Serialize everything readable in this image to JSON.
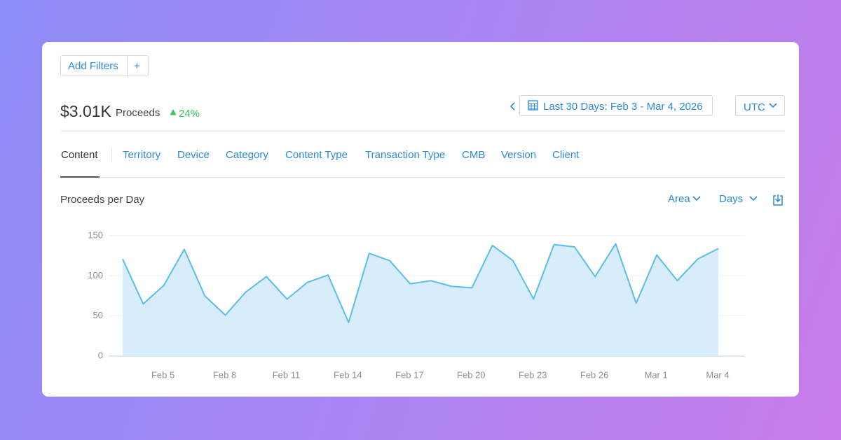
{
  "toolbar": {
    "add_filters": "Add Filters",
    "add": "+"
  },
  "summary": {
    "amount": "$3.01K",
    "label": "Proceeds",
    "change": "24%"
  },
  "date_range": "Last 30 Days: Feb 3 - Mar 4, 2026",
  "timezone": "UTC",
  "tabs": [
    "Content",
    "Territory",
    "Device",
    "Category",
    "Content Type",
    "Transaction Type",
    "CMB",
    "Version",
    "Client"
  ],
  "chart_controls": {
    "chart_type": "Area",
    "interval": "Days"
  },
  "chart_data": {
    "type": "area",
    "title": "Proceeds per Day",
    "categories": [
      null,
      null,
      "Feb 5",
      null,
      null,
      "Feb 8",
      null,
      null,
      "Feb 11",
      null,
      null,
      "Feb 14",
      null,
      null,
      "Feb 17",
      null,
      null,
      "Feb 20",
      null,
      null,
      "Feb 23",
      null,
      null,
      "Feb 26",
      null,
      null,
      "Mar 1",
      null,
      null,
      "Mar 4"
    ],
    "values": [
      121,
      65,
      88,
      133,
      75,
      51,
      80,
      99,
      71,
      92,
      101,
      42,
      128,
      119,
      90,
      94,
      87,
      85,
      138,
      119,
      71,
      139,
      136,
      99,
      140,
      66,
      126,
      94,
      121,
      134
    ],
    "color": "#5bbde9",
    "fill": "#d8edfb",
    "ylim": [
      0,
      150
    ],
    "yticks": [
      0,
      50,
      100,
      150
    ],
    "grid": true
  }
}
